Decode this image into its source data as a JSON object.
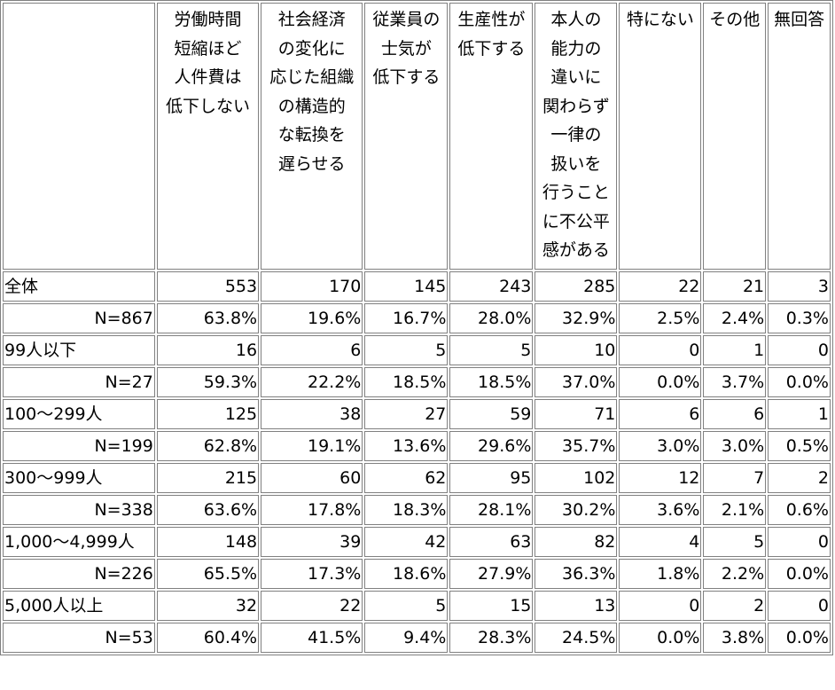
{
  "table": {
    "columns": [
      {
        "key": "hours",
        "lines": [
          "労働時間",
          "短縮ほど",
          "人件費は",
          "低下しない"
        ]
      },
      {
        "key": "socio",
        "lines": [
          "社会経済",
          "の変化に",
          "応じた組織",
          "の構造的",
          "な転換を",
          "遅らせる"
        ]
      },
      {
        "key": "morale",
        "lines": [
          "従業員の",
          "士気が",
          "低下する"
        ]
      },
      {
        "key": "productivity",
        "lines": [
          "生産性が",
          "低下する"
        ]
      },
      {
        "key": "unfair",
        "lines": [
          "本人の",
          "能力の",
          "違いに",
          "関わらず",
          "一律の",
          "扱いを",
          "行うこと",
          "に不公平",
          "感がある"
        ]
      },
      {
        "key": "none",
        "lines": [
          "特にない"
        ]
      },
      {
        "key": "other",
        "lines": [
          "その他"
        ]
      },
      {
        "key": "noanswer",
        "lines": [
          "無回答"
        ]
      }
    ],
    "groups": [
      {
        "label": "全体",
        "n_label": "N=867",
        "counts": [
          "553",
          "170",
          "145",
          "243",
          "285",
          "22",
          "21",
          "3"
        ],
        "percents": [
          "63.8%",
          "19.6%",
          "16.7%",
          "28.0%",
          "32.9%",
          "2.5%",
          "2.4%",
          "0.3%"
        ]
      },
      {
        "label": "99人以下",
        "n_label": "N=27",
        "counts": [
          "16",
          "6",
          "5",
          "5",
          "10",
          "0",
          "1",
          "0"
        ],
        "percents": [
          "59.3%",
          "22.2%",
          "18.5%",
          "18.5%",
          "37.0%",
          "0.0%",
          "3.7%",
          "0.0%"
        ]
      },
      {
        "label": "100～299人",
        "n_label": "N=199",
        "counts": [
          "125",
          "38",
          "27",
          "59",
          "71",
          "6",
          "6",
          "1"
        ],
        "percents": [
          "62.8%",
          "19.1%",
          "13.6%",
          "29.6%",
          "35.7%",
          "3.0%",
          "3.0%",
          "0.5%"
        ]
      },
      {
        "label": "300～999人",
        "n_label": "N=338",
        "counts": [
          "215",
          "60",
          "62",
          "95",
          "102",
          "12",
          "7",
          "2"
        ],
        "percents": [
          "63.6%",
          "17.8%",
          "18.3%",
          "28.1%",
          "30.2%",
          "3.6%",
          "2.1%",
          "0.6%"
        ]
      },
      {
        "label": "1,000～4,999人",
        "n_label": "N=226",
        "counts": [
          "148",
          "39",
          "42",
          "63",
          "82",
          "4",
          "5",
          "0"
        ],
        "percents": [
          "65.5%",
          "17.3%",
          "18.6%",
          "27.9%",
          "36.3%",
          "1.8%",
          "2.2%",
          "0.0%"
        ]
      },
      {
        "label": "5,000人以上",
        "n_label": "N=53",
        "counts": [
          "32",
          "22",
          "5",
          "15",
          "13",
          "0",
          "2",
          "0"
        ],
        "percents": [
          "60.4%",
          "41.5%",
          "9.4%",
          "28.3%",
          "24.5%",
          "0.0%",
          "3.8%",
          "0.0%"
        ]
      }
    ]
  }
}
